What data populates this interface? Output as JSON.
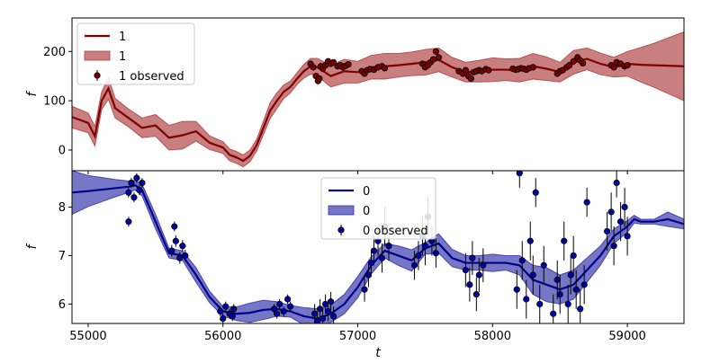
{
  "figure": {
    "xlabel": "t"
  },
  "chart_data": [
    {
      "type": "line",
      "ylabel": "f",
      "xlim": [
        54880,
        59420
      ],
      "ylim": [
        -42,
        268
      ],
      "yticks": [
        0,
        100,
        200
      ],
      "xticks": [
        55000,
        56000,
        57000,
        58000,
        59000
      ],
      "color": "#800000",
      "fill": "#a52a2a",
      "marker_fill": "#7a0000",
      "legend": {
        "location": "upper left",
        "entries": [
          "1",
          "1",
          "1 observed"
        ]
      },
      "series": [
        {
          "name": "1",
          "x": [
            54880,
            55000,
            55050,
            55100,
            55150,
            55200,
            55300,
            55400,
            55500,
            55600,
            55700,
            55800,
            55900,
            56000,
            56050,
            56100,
            56150,
            56200,
            56250,
            56300,
            56350,
            56400,
            56450,
            56500,
            56550,
            56600,
            56650,
            56700,
            56800,
            56900,
            57000,
            57100,
            57200,
            57300,
            57400,
            57500,
            57600,
            57700,
            57800,
            57900,
            58000,
            58100,
            58200,
            58300,
            58400,
            58500,
            58600,
            58700,
            58800,
            58900,
            59000,
            59100,
            59200,
            59420
          ],
          "y": [
            67,
            55,
            28,
            100,
            125,
            85,
            65,
            45,
            50,
            25,
            30,
            38,
            15,
            5,
            -10,
            -15,
            -22,
            -12,
            10,
            45,
            80,
            100,
            118,
            128,
            145,
            160,
            170,
            168,
            150,
            160,
            158,
            168,
            170,
            172,
            175,
            178,
            183,
            168,
            158,
            160,
            163,
            163,
            162,
            170,
            165,
            158,
            178,
            185,
            175,
            168,
            175,
            173,
            172,
            170
          ],
          "band": [
            22,
            20,
            20,
            18,
            22,
            20,
            18,
            20,
            22,
            25,
            28,
            20,
            14,
            12,
            12,
            12,
            12,
            12,
            12,
            14,
            16,
            16,
            14,
            12,
            12,
            14,
            16,
            18,
            22,
            24,
            22,
            24,
            26,
            24,
            24,
            26,
            24,
            20,
            20,
            22,
            24,
            22,
            24,
            26,
            24,
            20,
            24,
            22,
            22,
            20,
            25,
            35,
            45,
            70
          ]
        }
      ],
      "observed": [
        [
          56650,
          175
        ],
        [
          56670,
          168
        ],
        [
          56690,
          150
        ],
        [
          56705,
          140
        ],
        [
          56715,
          145
        ],
        [
          56725,
          170
        ],
        [
          56740,
          165
        ],
        [
          56760,
          172
        ],
        [
          56780,
          180
        ],
        [
          56800,
          175
        ],
        [
          56820,
          178
        ],
        [
          56850,
          170
        ],
        [
          56870,
          172
        ],
        [
          56890,
          168
        ],
        [
          56910,
          171
        ],
        [
          56930,
          174
        ],
        [
          57030,
          160
        ],
        [
          57050,
          155
        ],
        [
          57070,
          162
        ],
        [
          57090,
          164
        ],
        [
          57120,
          163
        ],
        [
          57150,
          168
        ],
        [
          57180,
          170
        ],
        [
          57200,
          166
        ],
        [
          57480,
          175
        ],
        [
          57500,
          168
        ],
        [
          57520,
          172
        ],
        [
          57540,
          178
        ],
        [
          57560,
          184
        ],
        [
          57580,
          200
        ],
        [
          57600,
          188
        ],
        [
          57750,
          160
        ],
        [
          57780,
          155
        ],
        [
          57800,
          162
        ],
        [
          57820,
          150
        ],
        [
          57840,
          145
        ],
        [
          57860,
          158
        ],
        [
          57880,
          160
        ],
        [
          57900,
          162
        ],
        [
          57920,
          160
        ],
        [
          57950,
          164
        ],
        [
          57970,
          162
        ],
        [
          58150,
          165
        ],
        [
          58170,
          163
        ],
        [
          58190,
          164
        ],
        [
          58210,
          166
        ],
        [
          58230,
          165
        ],
        [
          58250,
          163
        ],
        [
          58270,
          166
        ],
        [
          58300,
          168
        ],
        [
          58480,
          155
        ],
        [
          58500,
          160
        ],
        [
          58520,
          162
        ],
        [
          58550,
          168
        ],
        [
          58570,
          172
        ],
        [
          58600,
          180
        ],
        [
          58630,
          188
        ],
        [
          58650,
          182
        ],
        [
          58670,
          176
        ],
        [
          58880,
          172
        ],
        [
          58900,
          168
        ],
        [
          58920,
          178
        ],
        [
          58950,
          175
        ],
        [
          58980,
          170
        ],
        [
          59000,
          172
        ]
      ]
    },
    {
      "type": "line",
      "ylabel": "f",
      "xlim": [
        54880,
        59420
      ],
      "ylim": [
        5.6,
        8.75
      ],
      "yticks": [
        6,
        7,
        8
      ],
      "xticks": [
        55000,
        56000,
        57000,
        58000,
        59000
      ],
      "color": "#00008b",
      "fill": "#1a1aa0",
      "marker_fill": "#0000a0",
      "legend": {
        "location": "upper center",
        "entries": [
          "0",
          "0",
          "0 observed"
        ]
      },
      "series": [
        {
          "name": "0",
          "x": [
            54880,
            55000,
            55100,
            55200,
            55300,
            55350,
            55400,
            55500,
            55600,
            55700,
            55800,
            55900,
            56000,
            56100,
            56200,
            56300,
            56400,
            56500,
            56600,
            56700,
            56800,
            56900,
            57000,
            57100,
            57200,
            57300,
            57400,
            57500,
            57600,
            57700,
            57800,
            57900,
            58000,
            58100,
            58200,
            58300,
            58400,
            58500,
            58600,
            58700,
            58800,
            58900,
            59000,
            59050,
            59100,
            59200,
            59300,
            59420
          ],
          "y": [
            8.3,
            8.33,
            8.36,
            8.39,
            8.42,
            8.45,
            8.35,
            7.7,
            7.05,
            7.0,
            6.6,
            6.15,
            5.85,
            5.8,
            5.82,
            5.88,
            5.9,
            5.85,
            5.75,
            5.7,
            5.8,
            6.0,
            6.35,
            6.8,
            7.1,
            7.0,
            6.9,
            7.15,
            7.25,
            6.95,
            6.85,
            6.85,
            6.85,
            6.85,
            6.8,
            6.5,
            6.4,
            6.3,
            6.4,
            6.7,
            7.0,
            7.4,
            7.6,
            7.75,
            7.7,
            7.7,
            7.75,
            7.65
          ],
          "band": [
            0.45,
            0.32,
            0.25,
            0.18,
            0.12,
            0.1,
            0.12,
            0.15,
            0.1,
            0.1,
            0.15,
            0.12,
            0.1,
            0.14,
            0.2,
            0.2,
            0.15,
            0.12,
            0.18,
            0.2,
            0.18,
            0.2,
            0.22,
            0.18,
            0.15,
            0.2,
            0.22,
            0.12,
            0.2,
            0.18,
            0.15,
            0.15,
            0.18,
            0.15,
            0.2,
            0.3,
            0.35,
            0.3,
            0.3,
            0.25,
            0.2,
            0.15,
            0.12,
            0.08,
            0.05,
            0.05,
            0.15,
            0.1
          ]
        }
      ],
      "observed": [
        [
          55300,
          8.3,
          0.1
        ],
        [
          55320,
          8.5,
          0.1
        ],
        [
          55340,
          8.2,
          0.1
        ],
        [
          55360,
          8.6,
          0.1
        ],
        [
          55380,
          8.35,
          0.1
        ],
        [
          55300,
          7.7,
          0.1
        ],
        [
          55400,
          8.5,
          0.1
        ],
        [
          55620,
          7.1,
          0.12
        ],
        [
          55650,
          7.3,
          0.12
        ],
        [
          55680,
          6.95,
          0.12
        ],
        [
          55700,
          7.2,
          0.12
        ],
        [
          55720,
          7.0,
          0.12
        ],
        [
          55640,
          7.6,
          0.1
        ],
        [
          55980,
          5.85,
          0.1
        ],
        [
          56000,
          5.7,
          0.1
        ],
        [
          56020,
          5.95,
          0.1
        ],
        [
          56050,
          5.8,
          0.1
        ],
        [
          56070,
          5.75,
          0.1
        ],
        [
          56080,
          5.9,
          0.1
        ],
        [
          56380,
          5.9,
          0.1
        ],
        [
          56400,
          5.8,
          0.1
        ],
        [
          56420,
          6.0,
          0.1
        ],
        [
          56450,
          5.85,
          0.1
        ],
        [
          56480,
          6.1,
          0.1
        ],
        [
          56500,
          5.95,
          0.1
        ],
        [
          56680,
          5.8,
          0.2
        ],
        [
          56700,
          5.65,
          0.2
        ],
        [
          56720,
          5.9,
          0.2
        ],
        [
          56740,
          5.7,
          0.2
        ],
        [
          56760,
          6.0,
          0.2
        ],
        [
          56780,
          5.85,
          0.2
        ],
        [
          56800,
          6.05,
          0.2
        ],
        [
          56820,
          5.75,
          0.2
        ],
        [
          57050,
          6.3,
          0.25
        ],
        [
          57080,
          6.6,
          0.25
        ],
        [
          57100,
          6.85,
          0.25
        ],
        [
          57120,
          7.1,
          0.3
        ],
        [
          57150,
          7.3,
          0.3
        ],
        [
          57180,
          6.95,
          0.3
        ],
        [
          57200,
          7.6,
          0.4
        ],
        [
          57230,
          7.2,
          0.3
        ],
        [
          57420,
          6.8,
          0.3
        ],
        [
          57450,
          7.0,
          0.3
        ],
        [
          57480,
          7.4,
          0.4
        ],
        [
          57500,
          7.2,
          0.4
        ],
        [
          57520,
          7.8,
          0.4
        ],
        [
          57550,
          7.3,
          0.3
        ],
        [
          57580,
          7.05,
          0.3
        ],
        [
          57800,
          6.7,
          0.35
        ],
        [
          57830,
          6.4,
          0.35
        ],
        [
          57850,
          6.95,
          0.35
        ],
        [
          57880,
          6.2,
          0.35
        ],
        [
          57900,
          6.6,
          0.35
        ],
        [
          57930,
          6.8,
          0.35
        ],
        [
          58180,
          6.3,
          0.4
        ],
        [
          58200,
          8.7,
          0.3
        ],
        [
          58220,
          6.9,
          0.4
        ],
        [
          58250,
          6.1,
          0.4
        ],
        [
          58280,
          7.3,
          0.4
        ],
        [
          58300,
          6.6,
          0.4
        ],
        [
          58320,
          8.3,
          0.3
        ],
        [
          58350,
          6.0,
          0.4
        ],
        [
          58380,
          6.8,
          0.4
        ],
        [
          58450,
          5.8,
          0.4
        ],
        [
          58480,
          6.5,
          0.4
        ],
        [
          58500,
          6.2,
          0.4
        ],
        [
          58530,
          7.3,
          0.4
        ],
        [
          58560,
          6.0,
          0.4
        ],
        [
          58580,
          6.6,
          0.4
        ],
        [
          58600,
          7.0,
          0.4
        ],
        [
          58620,
          6.3,
          0.4
        ],
        [
          58650,
          5.9,
          0.4
        ],
        [
          58680,
          6.4,
          0.4
        ],
        [
          58700,
          8.1,
          0.3
        ],
        [
          58850,
          7.5,
          0.4
        ],
        [
          58880,
          7.9,
          0.4
        ],
        [
          58900,
          7.2,
          0.4
        ],
        [
          58920,
          8.5,
          0.3
        ],
        [
          58950,
          7.7,
          0.4
        ],
        [
          58980,
          8.0,
          0.4
        ],
        [
          59000,
          7.4,
          0.4
        ]
      ]
    }
  ]
}
